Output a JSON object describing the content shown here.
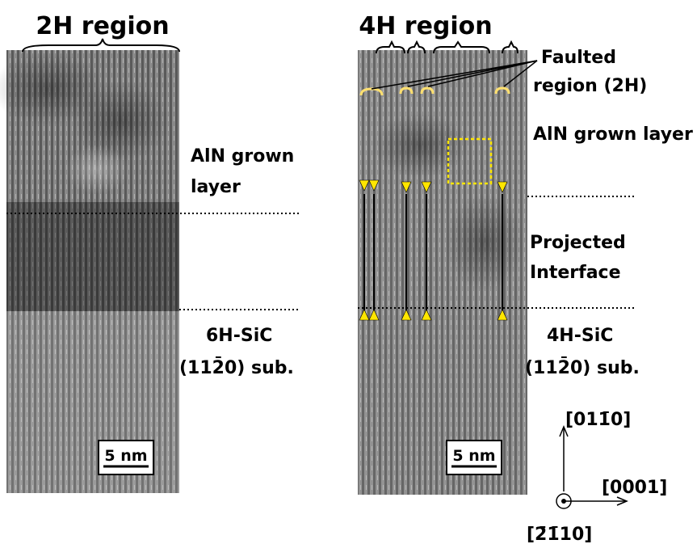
{
  "left": {
    "title": "2H region",
    "scale_bar": "5 nm",
    "layer_label": [
      "AlN grown",
      "layer"
    ],
    "substrate_label": [
      "6H-SiC",
      "(112̄0) sub."
    ]
  },
  "right": {
    "title": "4H region",
    "scale_bar": "5 nm",
    "faulted_label": [
      "Faulted",
      "region (2H)"
    ],
    "layer_label": "AlN grown layer",
    "interface_label": [
      "Projected",
      "Interface"
    ],
    "substrate_label": [
      "4H-SiC",
      "(112̄0) sub."
    ]
  },
  "axes": {
    "up": "[011̄0]",
    "right": "[0001]",
    "out": "[2̄1̄10]"
  }
}
